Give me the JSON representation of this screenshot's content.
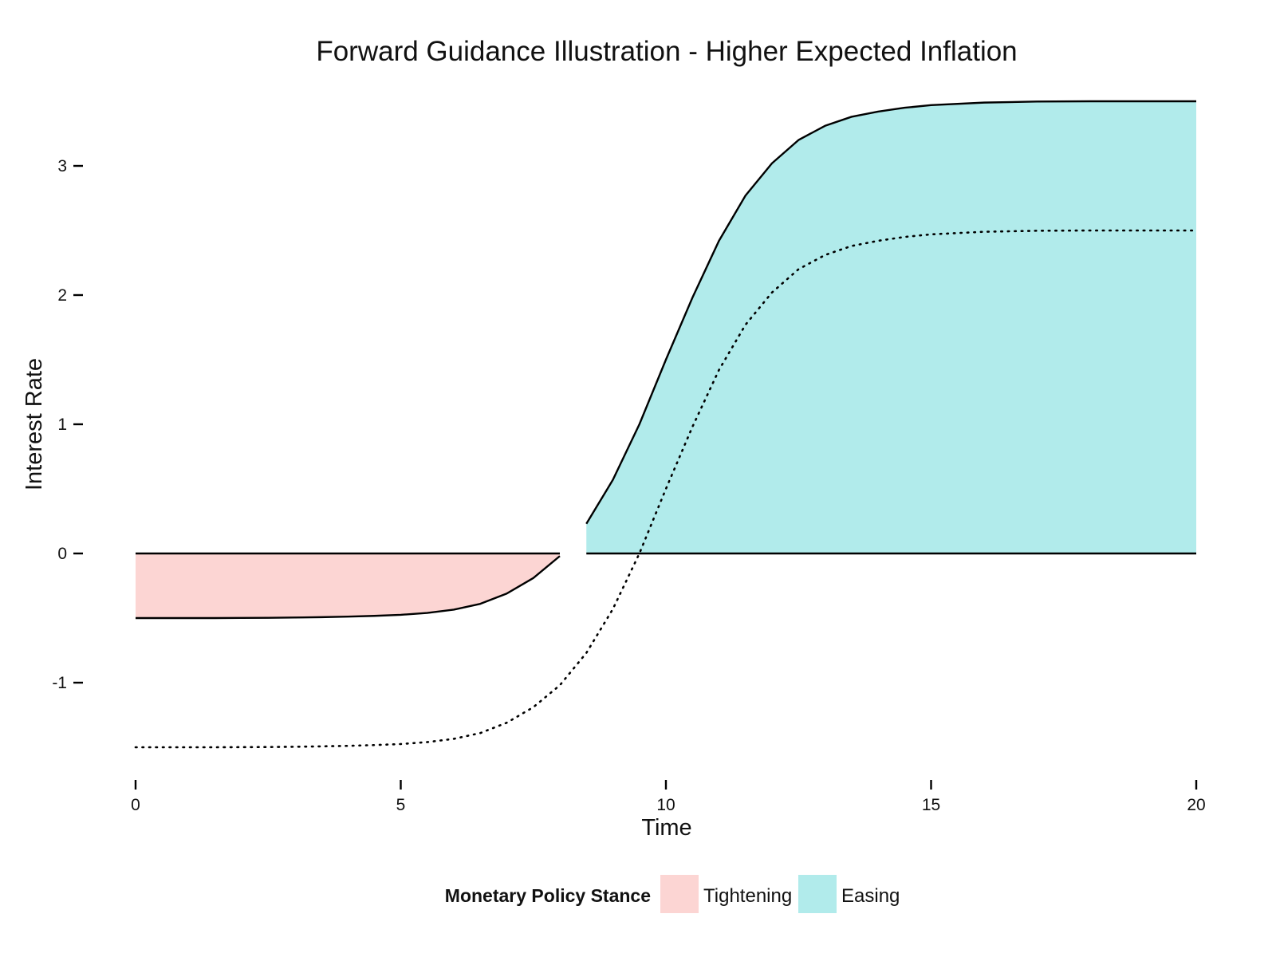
{
  "chart_data": {
    "type": "area",
    "title": "Forward Guidance Illustration - Higher Expected Inflation",
    "xlabel": "Time",
    "ylabel": "Interest Rate",
    "xlim": [
      0,
      20
    ],
    "ylim": [
      -1.75,
      3.5
    ],
    "x_ticks": [
      "0",
      "5",
      "10",
      "15",
      "20"
    ],
    "y_ticks": [
      "-1",
      "0",
      "1",
      "2",
      "3"
    ],
    "grid": false,
    "legend": {
      "title": "Monetary Policy Stance",
      "position": "bottom",
      "entries": [
        {
          "label": "Tightening",
          "color": "#fcd5d3"
        },
        {
          "label": "Easing",
          "color": "#b1ebeb"
        }
      ]
    },
    "baseline": 0,
    "series": [
      {
        "stance": "Tightening",
        "color": "#fcd5d3",
        "x": [
          0,
          0.5,
          1,
          1.5,
          2,
          2.5,
          3,
          3.5,
          4,
          4.5,
          5,
          5.5,
          6,
          6.5,
          7,
          7.5,
          8
        ],
        "y": [
          -0.5,
          -0.5,
          -0.5,
          -0.5,
          -0.499,
          -0.498,
          -0.496,
          -0.493,
          -0.489,
          -0.483,
          -0.475,
          -0.46,
          -0.435,
          -0.39,
          -0.31,
          -0.19,
          -0.02
        ]
      },
      {
        "stance": "Easing",
        "color": "#b1ebeb",
        "x": [
          8.5,
          9,
          9.5,
          10,
          10.5,
          11,
          11.5,
          12,
          12.5,
          13,
          13.5,
          14,
          14.5,
          15,
          16,
          17,
          18,
          19,
          20
        ],
        "y": [
          0.23,
          0.57,
          1.0,
          1.5,
          1.98,
          2.42,
          2.77,
          3.02,
          3.2,
          3.31,
          3.38,
          3.42,
          3.45,
          3.47,
          3.49,
          3.498,
          3.5,
          3.5,
          3.5
        ]
      }
    ],
    "dotted_series": {
      "x": [
        0,
        0.5,
        1,
        1.5,
        2,
        2.5,
        3,
        3.5,
        4,
        4.5,
        5,
        5.5,
        6,
        6.5,
        7,
        7.5,
        8,
        8.5,
        9,
        9.5,
        10,
        10.5,
        11,
        11.5,
        12,
        12.5,
        13,
        13.5,
        14,
        14.5,
        15,
        16,
        17,
        18,
        19,
        20
      ],
      "y": [
        -1.5,
        -1.5,
        -1.5,
        -1.5,
        -1.499,
        -1.498,
        -1.496,
        -1.493,
        -1.489,
        -1.483,
        -1.475,
        -1.46,
        -1.435,
        -1.39,
        -1.31,
        -1.19,
        -1.02,
        -0.77,
        -0.43,
        0.0,
        0.5,
        0.98,
        1.42,
        1.77,
        2.02,
        2.2,
        2.31,
        2.38,
        2.42,
        2.45,
        2.47,
        2.49,
        2.498,
        2.5,
        2.5,
        2.5
      ]
    }
  }
}
